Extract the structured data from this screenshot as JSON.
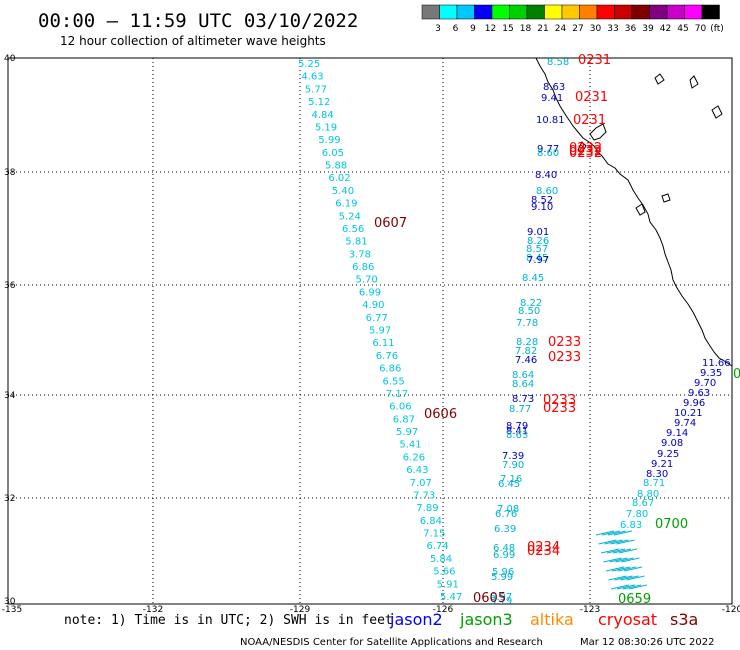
{
  "header": {
    "title": "00:00 – 11:59 UTC 03/10/2022",
    "subtitle": "12 hour collection of altimeter wave heights"
  },
  "colorbar": {
    "ticks": [
      "3",
      "6",
      "9",
      "12",
      "15",
      "18",
      "21",
      "24",
      "27",
      "30",
      "33",
      "36",
      "39",
      "42",
      "45",
      "70",
      "(ft)"
    ],
    "colors": [
      "#787878",
      "#00ffff",
      "#00c8ff",
      "#0000ff",
      "#00ff00",
      "#00d000",
      "#008000",
      "#ffff00",
      "#ffc800",
      "#ff8000",
      "#ff0000",
      "#c80000",
      "#800000",
      "#800080",
      "#c800c8",
      "#ff00ff",
      "#000000"
    ]
  },
  "axes": {
    "lat_labels": [
      "40",
      "38",
      "36",
      "34",
      "32",
      "30"
    ],
    "lon_labels": [
      "-135",
      "-132",
      "-129",
      "-126",
      "-123",
      "-120"
    ]
  },
  "tracks": {
    "track_a": [
      "5.25",
      "4.63",
      "5.77",
      "5.12",
      "4.84",
      "5.19",
      "5.99",
      "6.05",
      "5.88",
      "6.02",
      "5.40",
      "6.19",
      "5.24",
      "6.56",
      "5.81",
      "3.78",
      "6.86",
      "5.70",
      "6.99",
      "4.90",
      "6.77",
      "5.97",
      "6.11",
      "6.76",
      "6.86",
      "6.55",
      "7.17",
      "6.06",
      "6.87",
      "5.97",
      "5.41",
      "6.26",
      "6.43",
      "7.07",
      "7.73",
      "7.89",
      "6.84",
      "7.15",
      "6.74",
      "5.84",
      "5.66",
      "5.91",
      "5.47"
    ],
    "track_b": [
      "8.58",
      "8.63",
      "9.41",
      "10.81",
      "9.77",
      "8.60",
      "8.40",
      "8.60",
      "8.52",
      "9.10",
      "9.01",
      "8.26",
      "8.57",
      "8.45",
      "7.97",
      "8.45",
      "8.22",
      "8.50",
      "7.78",
      "8.28",
      "7.82",
      "7.46",
      "8.64",
      "8.64",
      "8.73",
      "8.77",
      "8.79",
      "8.41",
      "8.63",
      "7.39",
      "7.90",
      "7.16",
      "6.45",
      "7.08",
      "6.76",
      "6.39",
      "6.48",
      "6.99",
      "5.96",
      "5.99",
      "5.97",
      "5.79"
    ],
    "track_c": [
      "11.66",
      "9.35",
      "9.70",
      "9.63",
      "9.96",
      "10.21",
      "9.74",
      "9.14",
      "9.08",
      "9.25",
      "9.21",
      "8.30",
      "8.71",
      "8.80",
      "8.67",
      "7.80",
      "6.83"
    ]
  },
  "time_labels": [
    "0231",
    "0231",
    "0231",
    "0232",
    "0232",
    "0607",
    "0232",
    "0233",
    "0233",
    "0233",
    "0233",
    "0606",
    "0234",
    "0234",
    "0605",
    "0700",
    "0659"
  ],
  "cut_label": "0",
  "footer": {
    "note": "note:  1) Time is in UTC; 2) SWH is in feet",
    "satellites": [
      {
        "name": "jason2",
        "color": "#0000ff"
      },
      {
        "name": "jason3",
        "color": "#00a000"
      },
      {
        "name": "altika",
        "color": "#ff8c00"
      },
      {
        "name": "cryosat",
        "color": "#ff0000"
      },
      {
        "name": "s3a",
        "color": "#800000"
      }
    ],
    "credit": "NOAA/NESDIS Center for Satellite Applications and Research",
    "timestamp": "Mar 12 08:30:26 UTC 2022"
  }
}
